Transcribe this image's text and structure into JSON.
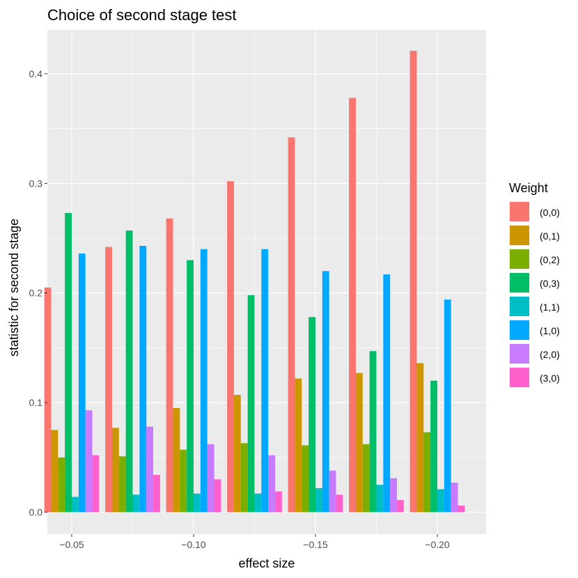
{
  "chart_data": {
    "type": "bar",
    "title": "Choice of second stage test",
    "xlabel": "effect size",
    "ylabel": "statistic for second stage",
    "ylim": [
      -0.02,
      0.44
    ],
    "yticks": [
      0.0,
      0.1,
      0.2,
      0.3,
      0.4
    ],
    "ytick_labels": [
      "0.0",
      "0.1",
      "0.2",
      "0.3",
      "0.4"
    ],
    "xlim": [
      -0.04,
      -0.22
    ],
    "xticks": [
      -0.05,
      -0.1,
      -0.15,
      -0.2
    ],
    "xtick_labels": [
      "−0.05",
      "−0.10",
      "−0.15",
      "−0.20"
    ],
    "categories": [
      -0.05,
      -0.075,
      -0.1,
      -0.125,
      -0.15,
      -0.175,
      -0.2
    ],
    "legend_title": "Weight",
    "legend_position": "right",
    "series": [
      {
        "name": "(0,0)",
        "color": "#F8766D",
        "values": [
          0.205,
          0.242,
          0.268,
          0.302,
          0.342,
          0.378,
          0.421
        ]
      },
      {
        "name": "(0,1)",
        "color": "#CD9600",
        "values": [
          0.075,
          0.077,
          0.095,
          0.107,
          0.122,
          0.127,
          0.136
        ]
      },
      {
        "name": "(0,2)",
        "color": "#7CAE00",
        "values": [
          0.05,
          0.051,
          0.057,
          0.063,
          0.061,
          0.062,
          0.073
        ]
      },
      {
        "name": "(0,3)",
        "color": "#00BE67",
        "values": [
          0.273,
          0.257,
          0.23,
          0.198,
          0.178,
          0.147,
          0.12
        ]
      },
      {
        "name": "(1,1)",
        "color": "#00BFC4",
        "values": [
          0.014,
          0.016,
          0.017,
          0.017,
          0.022,
          0.025,
          0.021
        ]
      },
      {
        "name": "(1,0)",
        "color": "#00A9FF",
        "values": [
          0.236,
          0.243,
          0.24,
          0.24,
          0.22,
          0.217,
          0.194
        ]
      },
      {
        "name": "(2,0)",
        "color": "#C77CFF",
        "values": [
          0.093,
          0.078,
          0.062,
          0.052,
          0.038,
          0.031,
          0.027
        ]
      },
      {
        "name": "(3,0)",
        "color": "#FF61CC",
        "values": [
          0.052,
          0.034,
          0.03,
          0.019,
          0.016,
          0.011,
          0.006
        ]
      }
    ]
  }
}
